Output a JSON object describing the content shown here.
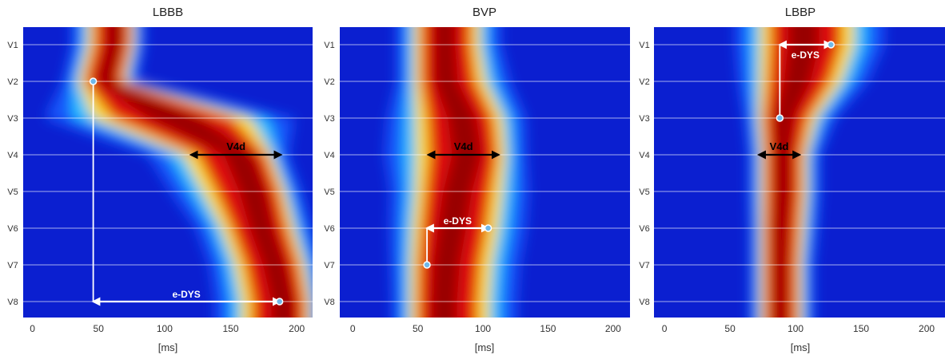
{
  "chart_data": [
    {
      "type": "heatmap",
      "title": "LBBB",
      "xlabel": "[ms]",
      "ylabel": "",
      "x_ticks": [
        0,
        50,
        100,
        150,
        200
      ],
      "xlim": [
        -7,
        212
      ],
      "leads": [
        "V1",
        "V2",
        "V3",
        "V4",
        "V5",
        "V6",
        "V7",
        "V8"
      ],
      "grid": true,
      "activation_band": [
        {
          "lead": "V1",
          "start": 40,
          "peak": 63,
          "end": 78
        },
        {
          "lead": "V2",
          "start": 33,
          "peak": 55,
          "end": 72
        },
        {
          "lead": "V3",
          "start": 40,
          "peak": 108,
          "end": 170
        },
        {
          "lead": "V4",
          "start": 110,
          "peak": 160,
          "end": 183
        },
        {
          "lead": "V5",
          "start": 125,
          "peak": 170,
          "end": 193
        },
        {
          "lead": "V6",
          "start": 140,
          "peak": 175,
          "end": 200
        },
        {
          "lead": "V7",
          "start": 150,
          "peak": 185,
          "end": 208
        },
        {
          "lead": "V8",
          "start": 155,
          "peak": 192,
          "end": 212
        }
      ],
      "measurements": [
        {
          "label": "V4d",
          "type": "double-arrow",
          "lead": "V4",
          "x_start": 120,
          "x_end": 188,
          "color": "#000000"
        },
        {
          "label": "e-DYS",
          "type": "elbow",
          "from": {
            "lead": "V2",
            "x": 46
          },
          "to": {
            "lead": "V8",
            "x": 187
          },
          "color": "#ffffff"
        }
      ]
    },
    {
      "type": "heatmap",
      "title": "BVP",
      "xlabel": "[ms]",
      "ylabel": "",
      "x_ticks": [
        0,
        50,
        100,
        150,
        200
      ],
      "xlim": [
        -10,
        213
      ],
      "leads": [
        "V1",
        "V2",
        "V3",
        "V4",
        "V5",
        "V6",
        "V7",
        "V8"
      ],
      "grid": true,
      "activation_band": [
        {
          "lead": "V1",
          "start": 45,
          "peak": 70,
          "end": 100
        },
        {
          "lead": "V2",
          "start": 45,
          "peak": 70,
          "end": 105
        },
        {
          "lead": "V3",
          "start": 45,
          "peak": 85,
          "end": 118
        },
        {
          "lead": "V4",
          "start": 45,
          "peak": 90,
          "end": 120
        },
        {
          "lead": "V5",
          "start": 45,
          "peak": 80,
          "end": 118
        },
        {
          "lead": "V6",
          "start": 43,
          "peak": 75,
          "end": 115
        },
        {
          "lead": "V7",
          "start": 42,
          "peak": 70,
          "end": 110
        },
        {
          "lead": "V8",
          "start": 42,
          "peak": 68,
          "end": 108
        }
      ],
      "measurements": [
        {
          "label": "V4d",
          "type": "double-arrow",
          "lead": "V4",
          "x_start": 58,
          "x_end": 112,
          "color": "#000000"
        },
        {
          "label": "e-DYS",
          "type": "elbow",
          "from": {
            "lead": "V7",
            "x": 57
          },
          "to": {
            "lead": "V6",
            "x": 104
          },
          "color": "#ffffff"
        }
      ]
    },
    {
      "type": "heatmap",
      "title": "LBBP",
      "xlabel": "[ms]",
      "ylabel": "",
      "x_ticks": [
        0,
        50,
        100,
        150,
        200
      ],
      "xlim": [
        -8,
        214
      ],
      "leads": [
        "V1",
        "V2",
        "V3",
        "V4",
        "V5",
        "V6",
        "V7",
        "V8"
      ],
      "grid": true,
      "activation_band": [
        {
          "lead": "V1",
          "start": 70,
          "peak": 105,
          "end": 148
        },
        {
          "lead": "V2",
          "start": 70,
          "peak": 100,
          "end": 138
        },
        {
          "lead": "V3",
          "start": 70,
          "peak": 90,
          "end": 118
        },
        {
          "lead": "V4",
          "start": 72,
          "peak": 90,
          "end": 110
        },
        {
          "lead": "V5",
          "start": 72,
          "peak": 90,
          "end": 110
        },
        {
          "lead": "V6",
          "start": 72,
          "peak": 88,
          "end": 108
        },
        {
          "lead": "V7",
          "start": 72,
          "peak": 88,
          "end": 106
        },
        {
          "lead": "V8",
          "start": 72,
          "peak": 88,
          "end": 106
        }
      ],
      "measurements": [
        {
          "label": "V4d",
          "type": "double-arrow",
          "lead": "V4",
          "x_start": 72,
          "x_end": 103,
          "color": "#000000"
        },
        {
          "label": "e-DYS",
          "type": "elbow",
          "from": {
            "lead": "V3",
            "x": 88
          },
          "to": {
            "lead": "V1",
            "x": 127
          },
          "color": "#ffffff"
        }
      ]
    }
  ],
  "colors": {
    "background": "#0b1fd0",
    "low": "#1a5cff",
    "mid_low": "#27c8ff",
    "mid": "#ffe020",
    "high": "#e01010",
    "peak": "#8b0000",
    "grid": "#ffffff",
    "marker_fill": "#6fb8ea"
  }
}
